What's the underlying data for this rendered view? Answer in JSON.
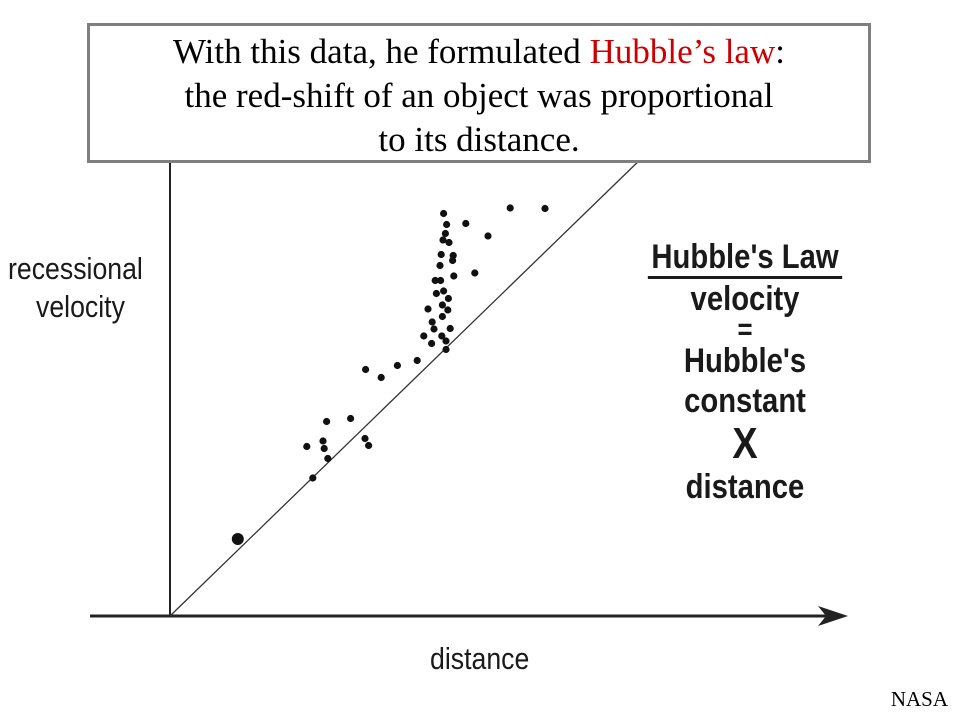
{
  "caption": {
    "line1_prefix": "With this data, he formulated ",
    "line1_highlight": "Hubble’s law",
    "line1_suffix": ":",
    "line2": "the red-shift of an object was proportional",
    "line3": "to its distance.",
    "highlight_color": "#cc0000"
  },
  "credit": "NASA",
  "chart_data": {
    "type": "scatter",
    "title": "",
    "ylabel_lines": [
      "recessional",
      "velocity"
    ],
    "xlabel": "distance",
    "xlim": [
      0,
      100
    ],
    "ylim": [
      0,
      100
    ],
    "grid": false,
    "tick_labels": "none",
    "annotation": {
      "title": "Hubble's Law",
      "lines": [
        "velocity",
        "=",
        "Hubble's constant",
        "X",
        "distance"
      ]
    },
    "fit_line": {
      "x": [
        0,
        85
      ],
      "y": [
        0,
        99
      ]
    },
    "points": [
      {
        "x": 11.3,
        "y": 15.4
      },
      {
        "x": 23.8,
        "y": 27.6
      },
      {
        "x": 25.5,
        "y": 35.0
      },
      {
        "x": 25.7,
        "y": 33.5
      },
      {
        "x": 26.3,
        "y": 31.5
      },
      {
        "x": 26.1,
        "y": 38.9
      },
      {
        "x": 22.8,
        "y": 33.9
      },
      {
        "x": 30.1,
        "y": 39.5
      },
      {
        "x": 32.5,
        "y": 35.5
      },
      {
        "x": 33.1,
        "y": 34.1
      },
      {
        "x": 32.6,
        "y": 49.3
      },
      {
        "x": 35.2,
        "y": 47.7
      },
      {
        "x": 37.9,
        "y": 50.1
      },
      {
        "x": 41.2,
        "y": 51.1
      },
      {
        "x": 42.3,
        "y": 56.0
      },
      {
        "x": 43.0,
        "y": 61.4
      },
      {
        "x": 43.6,
        "y": 54.5
      },
      {
        "x": 43.7,
        "y": 58.8
      },
      {
        "x": 44.0,
        "y": 57.4
      },
      {
        "x": 44.2,
        "y": 67.1
      },
      {
        "x": 44.4,
        "y": 64.5
      },
      {
        "x": 45.0,
        "y": 70.1
      },
      {
        "x": 45.1,
        "y": 67.1
      },
      {
        "x": 45.2,
        "y": 72.3
      },
      {
        "x": 45.3,
        "y": 56.0
      },
      {
        "x": 45.4,
        "y": 59.9
      },
      {
        "x": 45.4,
        "y": 62.2
      },
      {
        "x": 45.5,
        "y": 75.2
      },
      {
        "x": 45.6,
        "y": 65.0
      },
      {
        "x": 45.6,
        "y": 80.5
      },
      {
        "x": 45.9,
        "y": 76.5
      },
      {
        "x": 46.0,
        "y": 53.3
      },
      {
        "x": 46.0,
        "y": 55.0
      },
      {
        "x": 46.1,
        "y": 78.3
      },
      {
        "x": 46.3,
        "y": 61.2
      },
      {
        "x": 46.4,
        "y": 63.5
      },
      {
        "x": 46.5,
        "y": 74.7
      },
      {
        "x": 46.7,
        "y": 57.5
      },
      {
        "x": 47.1,
        "y": 71.1
      },
      {
        "x": 47.2,
        "y": 72.1
      },
      {
        "x": 47.3,
        "y": 68.0
      },
      {
        "x": 49.3,
        "y": 78.5
      },
      {
        "x": 50.8,
        "y": 68.6
      },
      {
        "x": 53.0,
        "y": 76.0
      },
      {
        "x": 56.7,
        "y": 81.6
      },
      {
        "x": 62.5,
        "y": 81.5
      },
      {
        "x": 67.5,
        "y": 94.9
      },
      {
        "x": 69.5,
        "y": 93.3
      }
    ],
    "faded_points": [
      {
        "x": 76.4,
        "y": 105.3
      },
      {
        "x": 79.1,
        "y": 105.8
      }
    ]
  }
}
